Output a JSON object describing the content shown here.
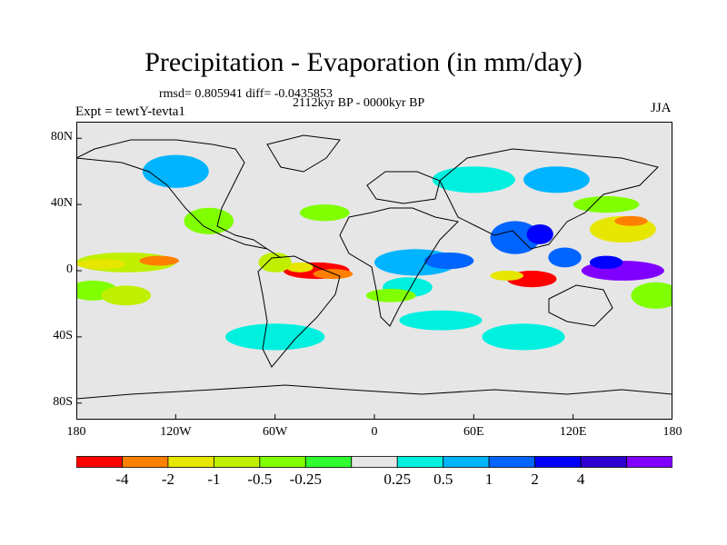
{
  "title": "Precipitation - Evaporation (in mm/day)",
  "stats_text": "rmsd= 0.805941 diff= -0.0435853",
  "period_text": "2112kyr BP - 0000kyr BP",
  "experiment_text": "Expt = tewtY-tevta1",
  "season_text": "JJA",
  "colors": {
    "background": "#ffffff",
    "land_mask_neutral": "#e6e6e6",
    "coastline": "#000000"
  },
  "map": {
    "projection": "equirectangular",
    "lon_range": [
      -180,
      180
    ],
    "lat_range": [
      -90,
      90
    ],
    "y_ticks": [
      {
        "label": "80N",
        "lat": 80
      },
      {
        "label": "40N",
        "lat": 40
      },
      {
        "label": "0",
        "lat": 0
      },
      {
        "label": "40S",
        "lat": -40
      },
      {
        "label": "80S",
        "lat": -80
      }
    ],
    "x_ticks": [
      {
        "label": "180",
        "lon": -180
      },
      {
        "label": "120W",
        "lon": -120
      },
      {
        "label": "60W",
        "lon": -60
      },
      {
        "label": "0",
        "lon": 0
      },
      {
        "label": "60E",
        "lon": 60
      },
      {
        "label": "120E",
        "lon": 120
      },
      {
        "label": "180",
        "lon": 180
      }
    ]
  },
  "colorbar": {
    "colors": [
      "#ff0000",
      "#ff8000",
      "#e6e600",
      "#c0f000",
      "#80ff00",
      "#30ff30",
      "#e6e6e6",
      "#00f0e0",
      "#00b4ff",
      "#0064ff",
      "#0000ff",
      "#3000d0",
      "#8000ff"
    ],
    "labels": [
      "-4",
      "-2",
      "-1",
      "-0.5",
      "-0.25",
      "0.25",
      "0.5",
      "1",
      "2",
      "4"
    ]
  },
  "field_blobs": [
    {
      "lon": -150,
      "lat": 5,
      "rlon": 30,
      "rlat": 6,
      "c": 3
    },
    {
      "lon": -165,
      "lat": 4,
      "rlon": 15,
      "rlat": 3,
      "c": 2
    },
    {
      "lon": -130,
      "lat": 6,
      "rlon": 12,
      "rlat": 3,
      "c": 1
    },
    {
      "lon": -170,
      "lat": -12,
      "rlon": 15,
      "rlat": 6,
      "c": 4
    },
    {
      "lon": -150,
      "lat": -15,
      "rlon": 15,
      "rlat": 6,
      "c": 3
    },
    {
      "lon": -35,
      "lat": 0,
      "rlon": 20,
      "rlat": 5,
      "c": 0
    },
    {
      "lon": -25,
      "lat": -2,
      "rlon": 12,
      "rlat": 3,
      "c": 1
    },
    {
      "lon": -45,
      "lat": 2,
      "rlon": 8,
      "rlat": 3,
      "c": 2
    },
    {
      "lon": 25,
      "lat": 5,
      "rlon": 25,
      "rlat": 8,
      "c": 8
    },
    {
      "lon": 45,
      "lat": 6,
      "rlon": 15,
      "rlat": 5,
      "c": 9
    },
    {
      "lon": 20,
      "lat": -10,
      "rlon": 15,
      "rlat": 6,
      "c": 7
    },
    {
      "lon": 85,
      "lat": 20,
      "rlon": 15,
      "rlat": 10,
      "c": 9
    },
    {
      "lon": 100,
      "lat": 22,
      "rlon": 8,
      "rlat": 6,
      "c": 10
    },
    {
      "lon": 95,
      "lat": -5,
      "rlon": 15,
      "rlat": 5,
      "c": 0
    },
    {
      "lon": 80,
      "lat": -3,
      "rlon": 10,
      "rlat": 3,
      "c": 2
    },
    {
      "lon": 115,
      "lat": 8,
      "rlon": 10,
      "rlat": 6,
      "c": 9
    },
    {
      "lon": 150,
      "lat": 0,
      "rlon": 25,
      "rlat": 6,
      "c": 12
    },
    {
      "lon": 140,
      "lat": 5,
      "rlon": 10,
      "rlat": 4,
      "c": 10
    },
    {
      "lon": 150,
      "lat": 25,
      "rlon": 20,
      "rlat": 8,
      "c": 2
    },
    {
      "lon": 155,
      "lat": 30,
      "rlon": 10,
      "rlat": 3,
      "c": 1
    },
    {
      "lon": -120,
      "lat": 60,
      "rlon": 20,
      "rlat": 10,
      "c": 8
    },
    {
      "lon": 60,
      "lat": 55,
      "rlon": 25,
      "rlat": 8,
      "c": 7
    },
    {
      "lon": 110,
      "lat": 55,
      "rlon": 20,
      "rlat": 8,
      "c": 8
    },
    {
      "lon": -60,
      "lat": -40,
      "rlon": 30,
      "rlat": 8,
      "c": 7
    },
    {
      "lon": 40,
      "lat": -30,
      "rlon": 25,
      "rlat": 6,
      "c": 7
    },
    {
      "lon": 90,
      "lat": -40,
      "rlon": 25,
      "rlat": 8,
      "c": 7
    },
    {
      "lon": -100,
      "lat": 30,
      "rlon": 15,
      "rlat": 8,
      "c": 4
    },
    {
      "lon": -30,
      "lat": 35,
      "rlon": 15,
      "rlat": 5,
      "c": 4
    },
    {
      "lon": 140,
      "lat": 40,
      "rlon": 20,
      "rlat": 5,
      "c": 4
    },
    {
      "lon": 170,
      "lat": -15,
      "rlon": 15,
      "rlat": 8,
      "c": 4
    },
    {
      "lon": -60,
      "lat": 5,
      "rlon": 10,
      "rlat": 6,
      "c": 3
    },
    {
      "lon": 10,
      "lat": -15,
      "rlon": 15,
      "rlat": 4,
      "c": 4
    }
  ]
}
